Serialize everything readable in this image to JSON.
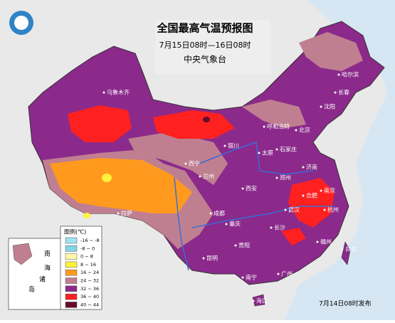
{
  "title": "全国最高气温预报图",
  "subtitle": "7月15日08时—16日08时",
  "agency": "中央气象台",
  "legend": {
    "title": "图例(℃)",
    "items": [
      {
        "label": "-16 ~ -8",
        "color": "#9fe3f2"
      },
      {
        "label": "-8 ~ 0",
        "color": "#7fd7e8"
      },
      {
        "label": "0 ~ 8",
        "color": "#fff9a6"
      },
      {
        "label": "8 ~ 16",
        "color": "#fff23a"
      },
      {
        "label": "16 ~ 24",
        "color": "#ff9a1e"
      },
      {
        "label": "24 ~ 32",
        "color": "#c07f90"
      },
      {
        "label": "32 ~ 36",
        "color": "#8b2a8b"
      },
      {
        "label": "36 ~ 40",
        "color": "#ff2020"
      },
      {
        "label": "40 ~ 44",
        "color": "#6a0a2a"
      }
    ]
  },
  "inset": [
    "南",
    "海",
    "诸",
    "岛"
  ],
  "cities": [
    "乌鲁木齐",
    "拉萨",
    "西宁",
    "兰州",
    "银川",
    "呼和浩特",
    "北京",
    "石家庄",
    "太原",
    "济南",
    "郑州",
    "西安",
    "成都",
    "重庆",
    "贵阳",
    "昆明",
    "南宁",
    "广州",
    "长沙",
    "武汉",
    "合肥",
    "南京",
    "杭州",
    "福州",
    "台北",
    "海口",
    "哈尔滨",
    "长春",
    "沈阳"
  ],
  "issued": "7月14日08时发布"
}
